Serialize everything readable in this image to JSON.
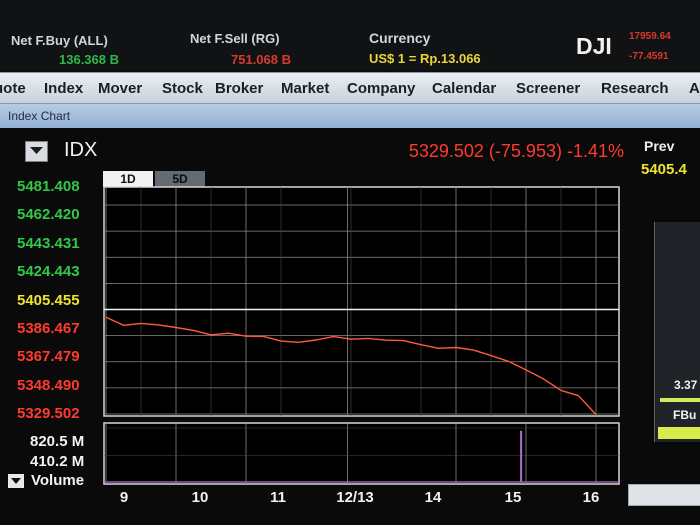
{
  "topbar": {
    "net_fbuy_label": "Net F.Buy (ALL)",
    "net_fbuy_value": "136.368 B",
    "net_fsell_label": "Net F.Sell (RG)",
    "net_fsell_value": "751.068 B",
    "currency_label": "Currency",
    "currency_value": "US$ 1 = Rp.13.066",
    "dji_label": "DJI",
    "dji_value": "17959.64",
    "dji_change": "-77.4591"
  },
  "menu": [
    "uote",
    "Index",
    "Mover",
    "Stock",
    "Broker",
    "Market",
    "Company",
    "Calendar",
    "Screener",
    "Research",
    "A"
  ],
  "window_title": "Index Chart",
  "chart_header": {
    "symbol": "IDX",
    "last_price": "5329.502 (-75.953) -1.41%",
    "prev_label": "Prev",
    "prev_value": "5405.4"
  },
  "tabs": [
    "1D",
    "5D"
  ],
  "side_panel": {
    "value": "3.37",
    "fbuy_label": "FBu"
  },
  "volume_label": "Volume",
  "colors": {
    "up": "#33c74a",
    "flat": "#f1e232",
    "down": "#ff3b2e",
    "price_line": "#ff5a3a",
    "volume": "#b070c8",
    "grid": "#8a8a8a"
  },
  "chart_data": {
    "type": "line",
    "title": "IDX",
    "x_ticks": [
      "9",
      "10",
      "11",
      "12/13",
      "14",
      "15",
      "16"
    ],
    "y_ticks": [
      "5481.408",
      "5462.420",
      "5443.431",
      "5424.443",
      "5405.455",
      "5386.467",
      "5367.479",
      "5348.490",
      "5329.502"
    ],
    "ylim": [
      5329.502,
      5481.408
    ],
    "prev_close": 5405.455,
    "x": [
      9.0,
      9.25,
      9.5,
      9.75,
      10.0,
      10.25,
      10.5,
      10.75,
      11.0,
      11.25,
      11.5,
      11.75,
      12.0,
      12.25,
      12.5,
      12.75,
      13.0,
      13.25,
      13.5,
      13.75,
      14.0,
      14.25,
      14.5,
      14.75,
      15.0,
      15.25,
      15.5,
      15.75,
      16.0
    ],
    "y": [
      5400.2,
      5393.5,
      5395.8,
      5393.8,
      5392.8,
      5389.8,
      5387.5,
      5387.8,
      5386.5,
      5385.5,
      5382.9,
      5381.2,
      5383.7,
      5385.3,
      5384.3,
      5384.0,
      5383.6,
      5382.4,
      5380.3,
      5376.8,
      5378.3,
      5375.5,
      5372.4,
      5367.3,
      5362.0,
      5354.6,
      5347.1,
      5342.4,
      5329.5
    ],
    "volume_ticks": [
      "820.5 M",
      "410.2 M"
    ],
    "volume_ylim": [
      0,
      820.5
    ],
    "volume_spike": {
      "x": 14.93,
      "value": 780.0
    },
    "grid": true
  }
}
